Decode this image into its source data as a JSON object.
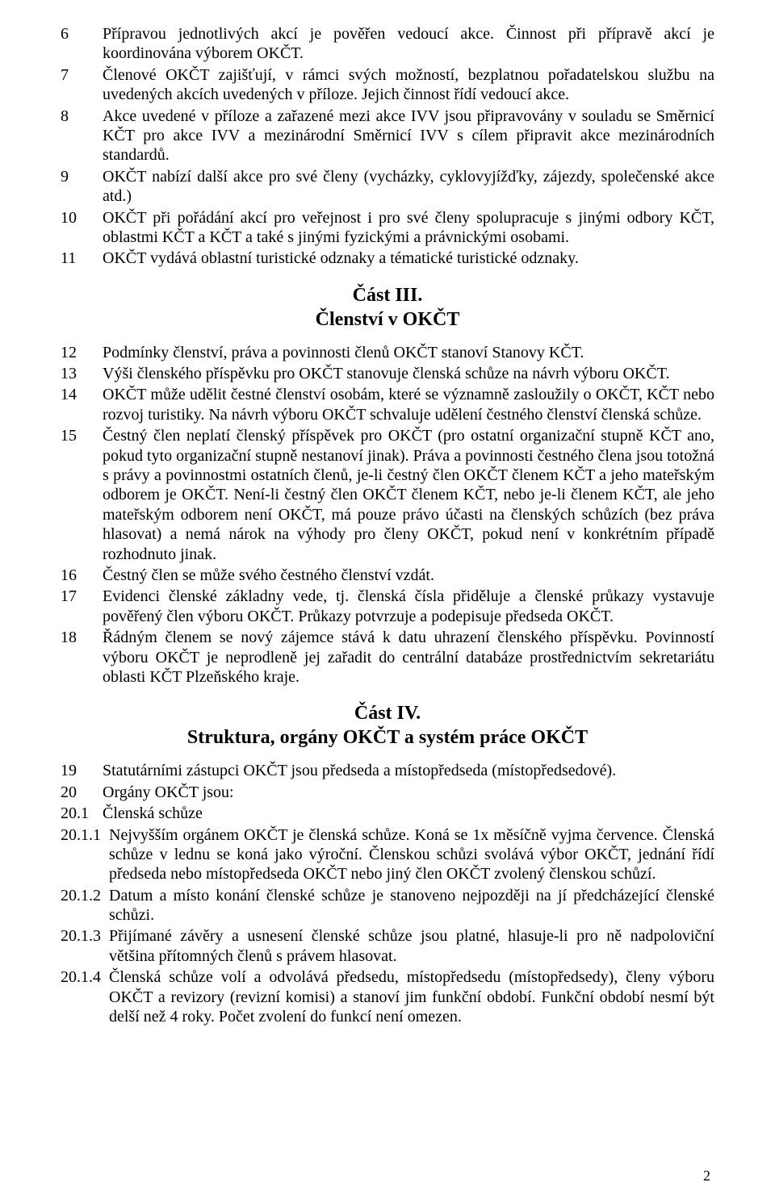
{
  "items_part2": [
    {
      "num": "6",
      "text": "Přípravou jednotlivých akcí je pověřen vedoucí akce. Činnost při přípravě akcí je koordinována výborem OKČT."
    },
    {
      "num": "7",
      "text": "Členové OKČT zajišťují, v rámci svých možností, bezplatnou pořadatelskou službu na uvedených akcích uvedených v příloze. Jejich činnost řídí vedoucí akce."
    },
    {
      "num": "8",
      "text": "Akce uvedené v příloze a zařazené mezi akce IVV jsou připravovány v souladu se Směrnicí KČT pro akce IVV a mezinárodní Směrnicí IVV s cílem připravit akce mezinárodních standardů."
    },
    {
      "num": "9",
      "text": "OKČT nabízí další akce pro své členy (vycházky, cyklovyjížďky, zájezdy, společenské akce atd.)"
    },
    {
      "num": "10",
      "text": "OKČT při pořádání akcí pro veřejnost i pro své členy spolupracuje s jinými odbory KČT, oblastmi KČT a KČT a také s jinými fyzickými a právnickými osobami."
    },
    {
      "num": "11",
      "text": "OKČT vydává oblastní turistické odznaky a tématické turistické odznaky."
    }
  ],
  "part3_title": "Část III.",
  "part3_subtitle": "Členství v OKČT",
  "items_part3": [
    {
      "num": "12",
      "text": "Podmínky členství, práva a povinnosti členů OKČT stanoví Stanovy KČT."
    },
    {
      "num": "13",
      "text": "Výši členského příspěvku pro OKČT stanovuje členská schůze na návrh výboru OKČT."
    },
    {
      "num": "14",
      "text": "OKČT může udělit čestné členství osobám, které se významně zasloužily o OKČT, KČT nebo rozvoj turistiky. Na návrh výboru OKČT schvaluje udělení čestného členství členská schůze."
    },
    {
      "num": "15",
      "text": "Čestný člen neplatí členský příspěvek pro OKČT (pro ostatní organizační stupně KČT ano, pokud tyto organizační stupně nestanoví jinak). Práva a povinnosti čestného člena jsou totožná s právy a povinnostmi ostatních členů, je-li čestný člen OKČT členem KČT a jeho mateřským odborem je OKČT. Není-li čestný člen OKČT členem KČT, nebo je-li členem KČT, ale jeho mateřským odborem není OKČT, má pouze právo účasti na členských schůzích (bez práva hlasovat) a nemá nárok na výhody pro členy OKČT, pokud není v konkrétním případě rozhodnuto jinak."
    },
    {
      "num": "16",
      "text": "Čestný člen se může svého čestného členství vzdát."
    },
    {
      "num": "17",
      "text": "Evidenci členské základny vede, tj. členská čísla přiděluje a členské průkazy vystavuje pověřený člen výboru OKČT. Průkazy potvrzuje a podepisuje předseda OKČT."
    },
    {
      "num": "18",
      "text": "Řádným členem se nový zájemce stává k datu uhrazení členského příspěvku. Povinností výboru OKČT je neprodleně jej zařadit do centrální databáze prostřednictvím sekretariátu oblasti KČT Plzeňského kraje."
    }
  ],
  "part4_title": "Část  IV.",
  "part4_subtitle": "Struktura, orgány OKČT a systém práce OKČT",
  "items_part4": [
    {
      "num": "19",
      "text": "Statutárními zástupci OKČT jsou předseda a místopředseda (místopředsedové)."
    },
    {
      "num": "20",
      "text": "Orgány OKČT jsou:"
    },
    {
      "num": "20.1",
      "text": "Členská schůze"
    }
  ],
  "subitems_part4": [
    {
      "num": "20.1.1",
      "text": "Nejvyšším orgánem OKČT je členská schůze. Koná se 1x měsíčně vyjma července. Členská schůze v lednu se koná jako výroční. Členskou schůzi svolává výbor OKČT, jednání řídí předseda nebo místopředseda OKČT nebo jiný člen OKČT zvolený členskou schůzí."
    },
    {
      "num": "20.1.2",
      "text": "Datum a místo konání členské schůze je stanoveno nejpozději na jí předcházející členské schůzi."
    },
    {
      "num": "20.1.3",
      "text": "Přijímané závěry a usnesení členské schůze jsou platné, hlasuje-li pro ně nadpoloviční většina přítomných členů s právem hlasovat."
    },
    {
      "num": "20.1.4",
      "text": "Členská schůze volí a odvolává předsedu, místopředsedu (místopředsedy), členy výboru OKČT a revizory (revizní komisi) a stanoví jim funkční období. Funkční období nesmí být delší než 4 roky. Počet zvolení do funkcí není omezen."
    }
  ],
  "page_number": "2"
}
